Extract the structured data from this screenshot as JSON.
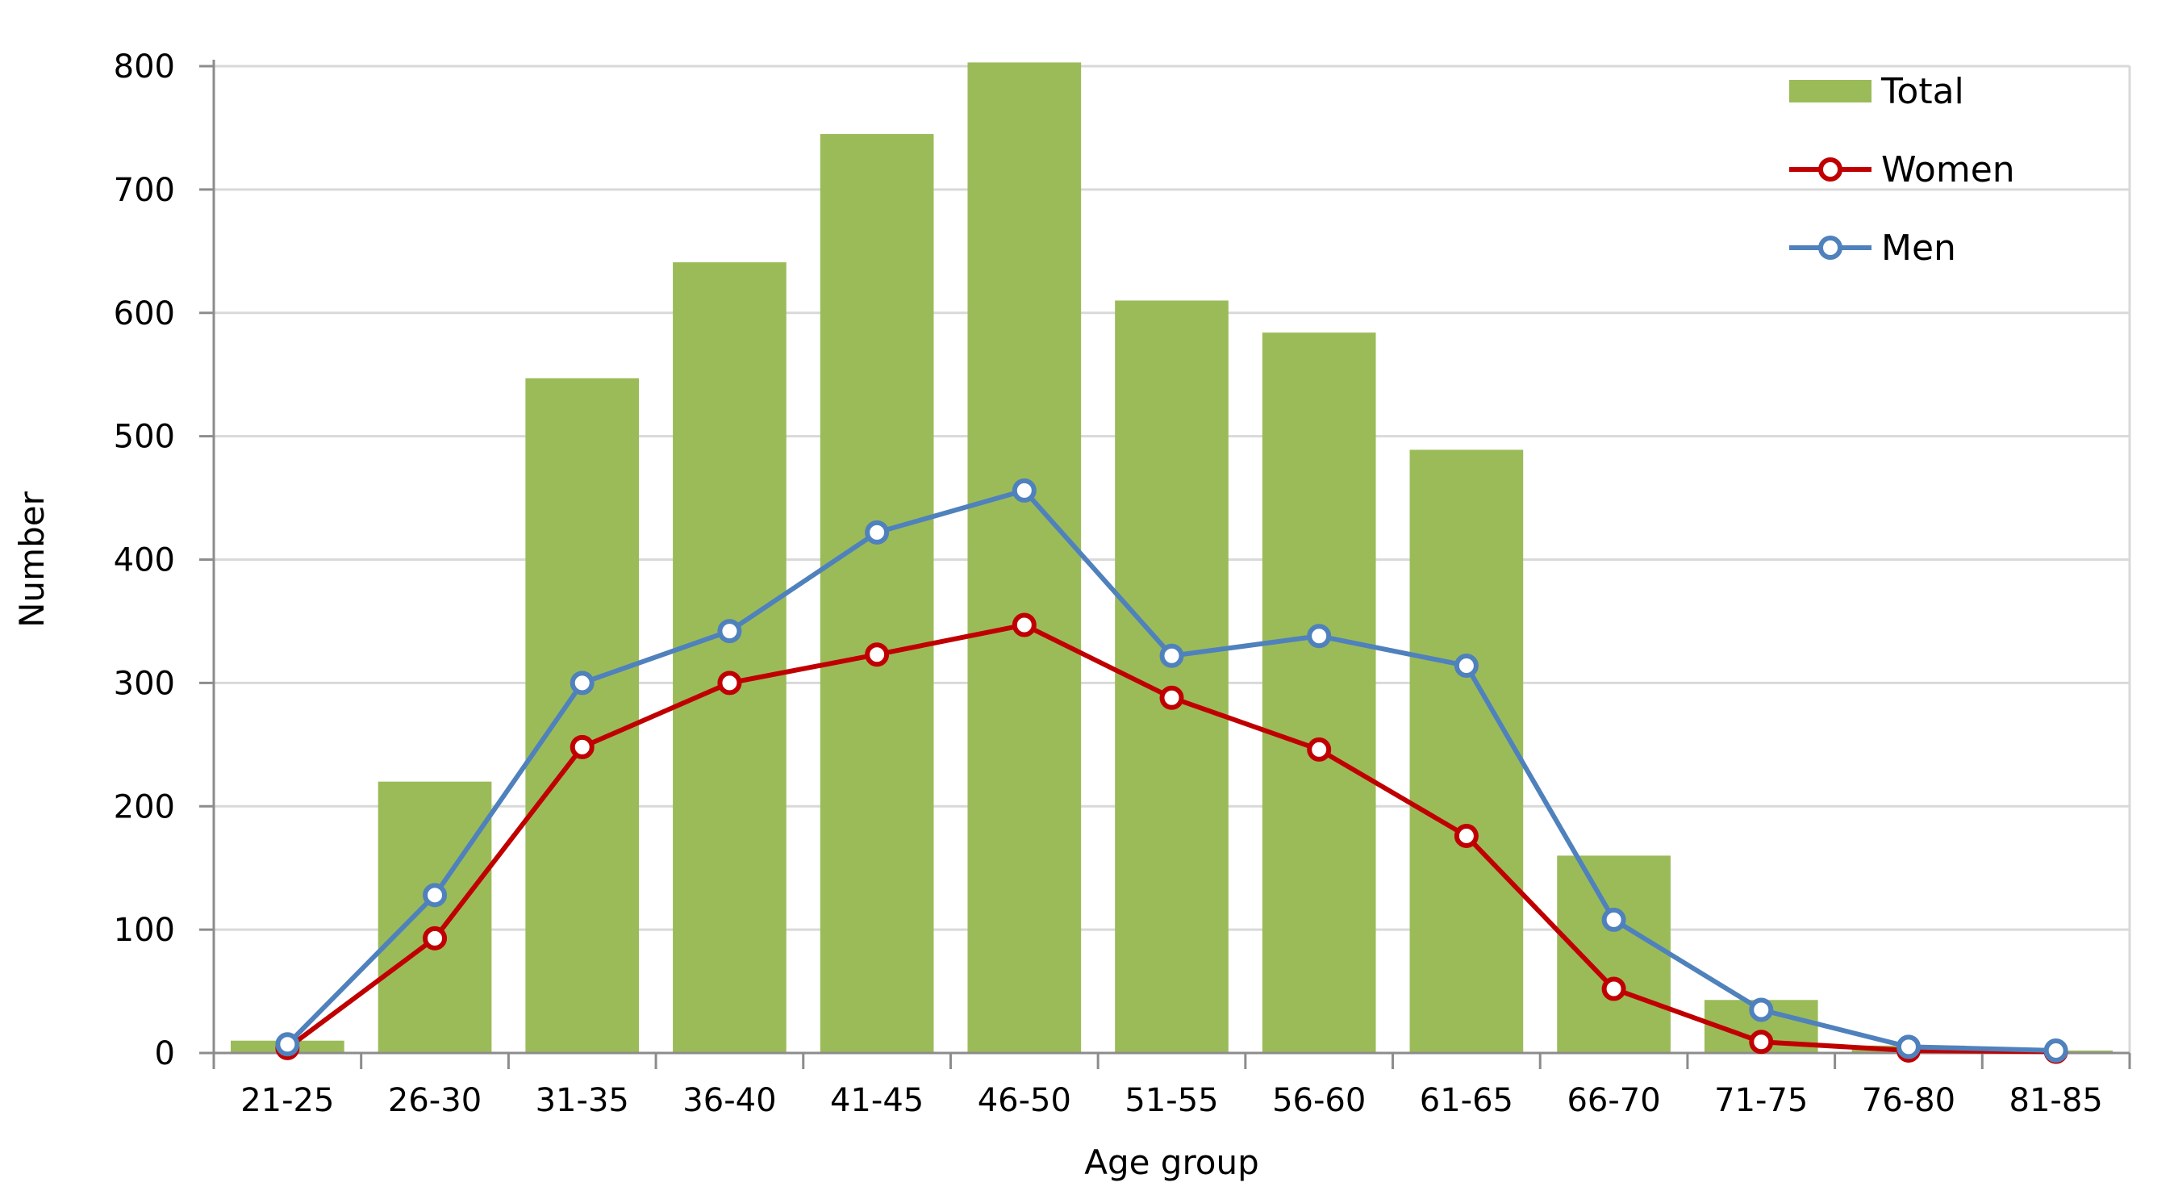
{
  "chart_data": {
    "type": "bar",
    "title": "",
    "xlabel": "Age group",
    "ylabel": "Number",
    "ylim": [
      0,
      800
    ],
    "yticks": [
      "0",
      "100",
      "200",
      "300",
      "400",
      "500",
      "600",
      "700",
      "800"
    ],
    "grid": true,
    "legend_position": "top-right",
    "categories": [
      "21-25",
      "26-30",
      "31-35",
      "36-40",
      "41-45",
      "46-50",
      "51-55",
      "56-60",
      "61-65",
      "66-70",
      "71-75",
      "76-80",
      "81-85"
    ],
    "series": [
      {
        "name": "Total",
        "type": "bar",
        "color": "#9bbb59",
        "values": [
          10,
          220,
          547,
          641,
          745,
          803,
          610,
          584,
          489,
          160,
          43,
          6,
          2
        ]
      },
      {
        "name": "Women",
        "type": "line",
        "color": "#c00000",
        "marker": "circle",
        "values": [
          4,
          93,
          248,
          300,
          323,
          347,
          288,
          246,
          176,
          52,
          9,
          2,
          1
        ]
      },
      {
        "name": "Men",
        "type": "line",
        "color": "#4f81bd",
        "marker": "circle",
        "values": [
          7,
          128,
          300,
          342,
          422,
          456,
          322,
          338,
          314,
          108,
          35,
          5,
          2
        ]
      }
    ]
  }
}
